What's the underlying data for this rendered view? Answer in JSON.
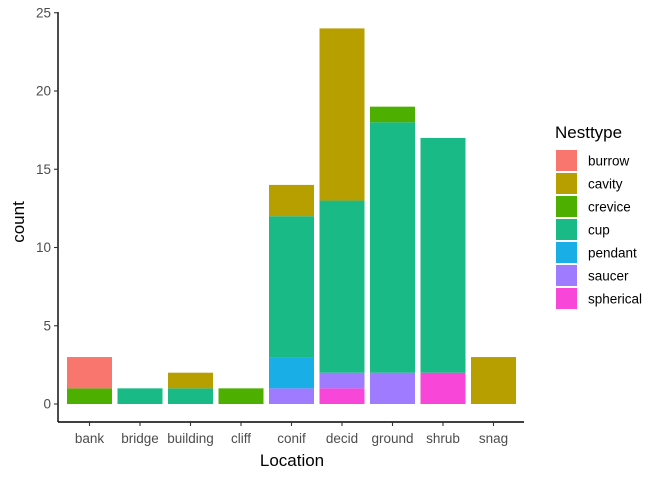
{
  "chart_data": {
    "type": "bar",
    "stacked": true,
    "xlabel": "Location",
    "ylabel": "count",
    "ylim": [
      0,
      25
    ],
    "yticks": [
      "0",
      "5",
      "10",
      "15",
      "20",
      "25"
    ],
    "grid": false,
    "legend": {
      "title": "Nesttype",
      "placement": "right"
    },
    "categories": [
      "bank",
      "bridge",
      "building",
      "cliff",
      "conif",
      "decid",
      "ground",
      "shrub",
      "snag"
    ],
    "series": [
      {
        "name": "burrow",
        "color": "#F8766D",
        "values": [
          2,
          0,
          0,
          0,
          0,
          0,
          0,
          0,
          0
        ]
      },
      {
        "name": "cavity",
        "color": "#B79F00",
        "values": [
          0,
          0,
          1,
          0,
          2,
          11,
          0,
          0,
          3
        ]
      },
      {
        "name": "crevice",
        "color": "#4DAF00",
        "values": [
          1,
          0,
          0,
          1,
          0,
          0,
          1,
          0,
          0
        ]
      },
      {
        "name": "cup",
        "color": "#19BA85",
        "values": [
          0,
          1,
          1,
          0,
          9,
          11,
          16,
          15,
          0
        ]
      },
      {
        "name": "pendant",
        "color": "#1AAEE6",
        "values": [
          0,
          0,
          0,
          0,
          2,
          0,
          0,
          0,
          0
        ]
      },
      {
        "name": "saucer",
        "color": "#9F7BFF",
        "values": [
          0,
          0,
          0,
          0,
          1,
          1,
          2,
          0,
          0
        ]
      },
      {
        "name": "spherical",
        "color": "#F746D8",
        "values": [
          0,
          0,
          0,
          0,
          0,
          1,
          0,
          2,
          0
        ]
      }
    ]
  }
}
